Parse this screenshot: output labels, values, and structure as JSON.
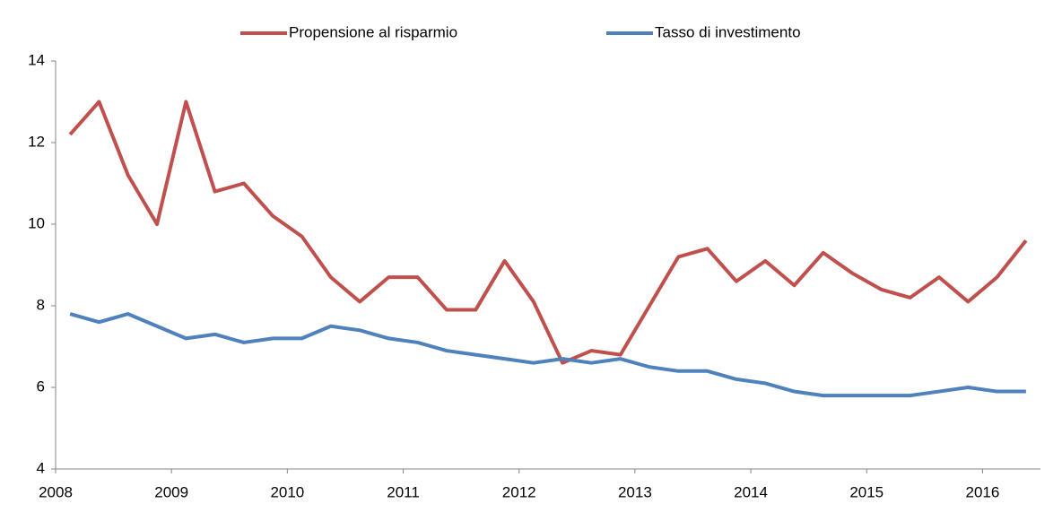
{
  "chart_data": {
    "type": "line",
    "categories": [
      "2008",
      null,
      null,
      null,
      "2009",
      null,
      null,
      null,
      "2010",
      null,
      null,
      null,
      "2011",
      null,
      null,
      null,
      "2012",
      null,
      null,
      null,
      "2013",
      null,
      null,
      null,
      "2014",
      null,
      null,
      null,
      "2015",
      null,
      null,
      null,
      "2016",
      null
    ],
    "series": [
      {
        "name": "Propensione al risparmio",
        "color": "#c0504d",
        "values": [
          12.2,
          13.0,
          11.2,
          10.0,
          13.0,
          10.8,
          11.0,
          10.2,
          9.7,
          8.7,
          8.1,
          8.7,
          8.7,
          7.9,
          7.9,
          9.1,
          8.1,
          6.6,
          6.9,
          6.8,
          8.0,
          9.2,
          9.4,
          8.6,
          9.1,
          8.5,
          9.3,
          8.8,
          8.4,
          8.2,
          8.7,
          8.1,
          8.7,
          9.6
        ]
      },
      {
        "name": "Tasso di investimento",
        "color": "#4f81bd",
        "values": [
          7.8,
          7.6,
          7.8,
          7.5,
          7.2,
          7.3,
          7.1,
          7.2,
          7.2,
          7.5,
          7.4,
          7.2,
          7.1,
          6.9,
          6.8,
          6.7,
          6.6,
          6.7,
          6.6,
          6.7,
          6.5,
          6.4,
          6.4,
          6.2,
          6.1,
          5.9,
          5.8,
          5.8,
          5.8,
          5.8,
          5.9,
          6.0,
          5.9,
          5.9
        ]
      }
    ],
    "ylim": [
      4,
      14
    ],
    "yticks": [
      4,
      6,
      8,
      10,
      12,
      14
    ],
    "legend": "top",
    "grid": false
  }
}
